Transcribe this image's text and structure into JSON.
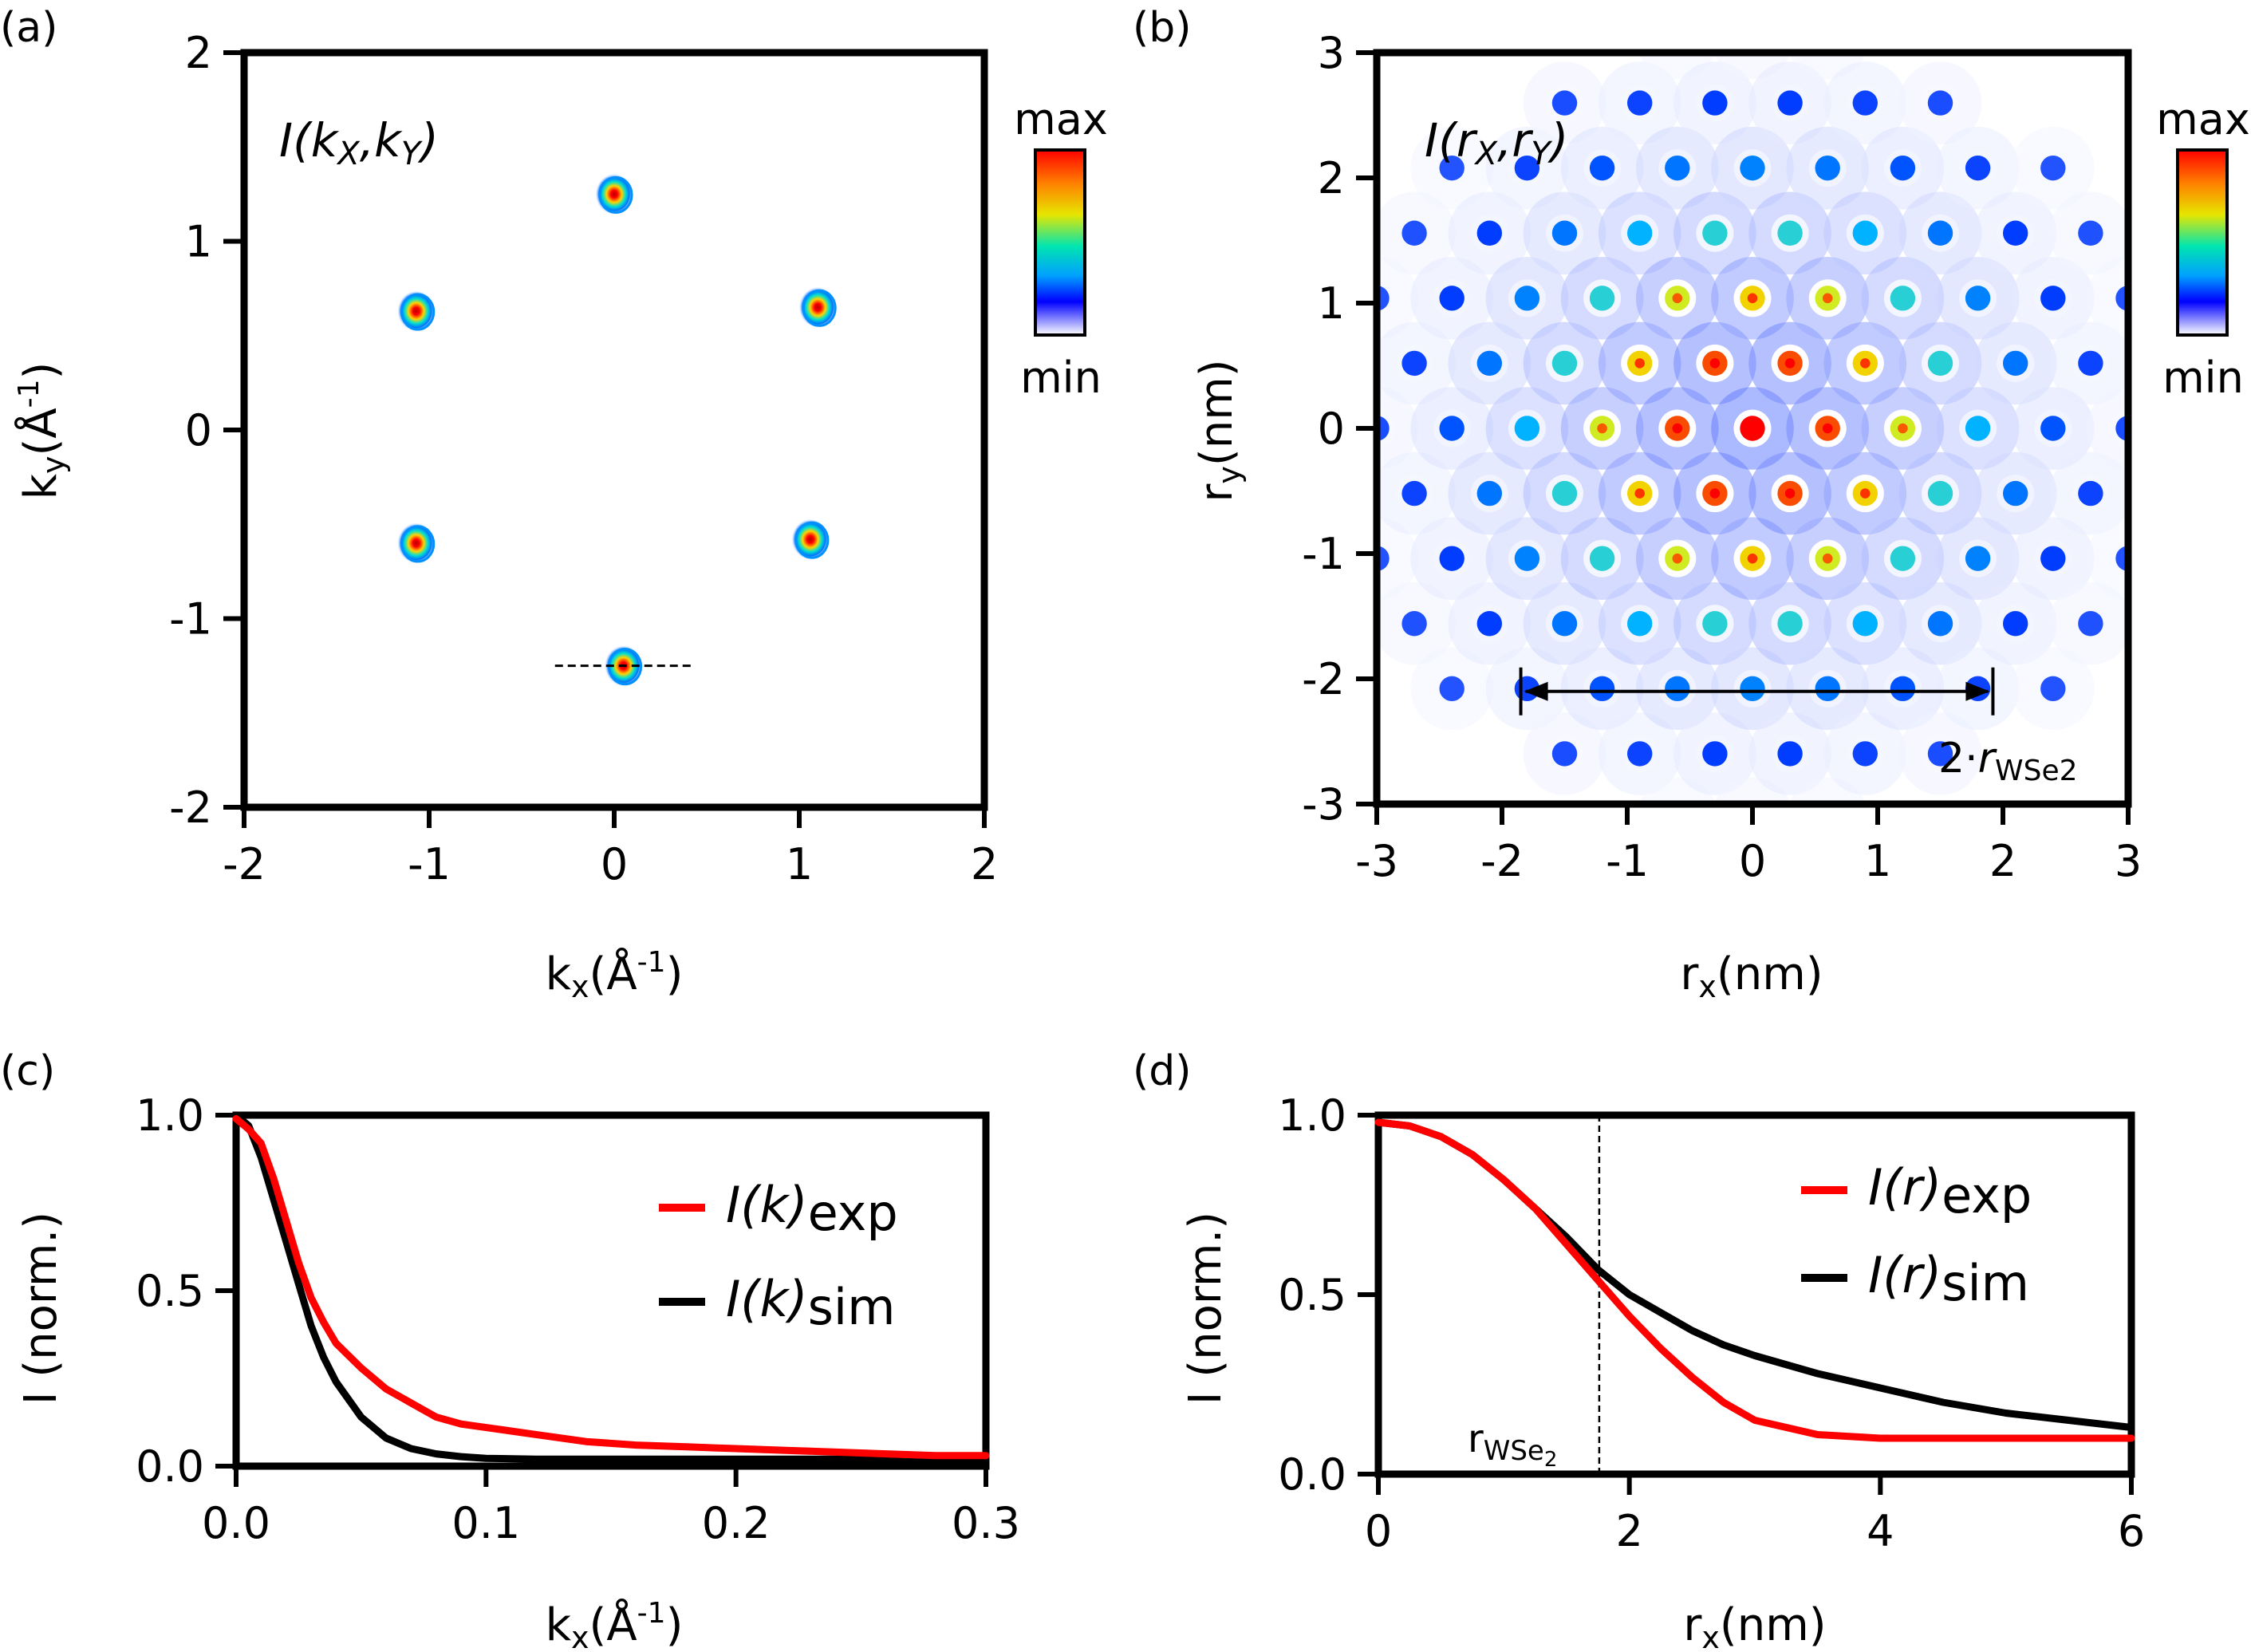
{
  "panels": {
    "a": {
      "label": "(a)",
      "inset_label": "I(kX,kY)",
      "inset_main": "I(k",
      "inset_sub1": "X",
      "inset_sep": ",k",
      "inset_sub2": "Y",
      "inset_close": ")",
      "xlabel_main": "k",
      "xlabel_sub": "x",
      "xlabel_unit_open": "(Å",
      "xlabel_sup": "-1",
      "xlabel_unit_close": ")",
      "ylabel_main": "k",
      "ylabel_sub": "y",
      "ylabel_unit_open": "(Å",
      "ylabel_sup": "-1",
      "ylabel_unit_close": ")",
      "colorbar": {
        "max_label": "max",
        "min_label": "min"
      }
    },
    "b": {
      "label": "(b)",
      "inset_main": "I(r",
      "inset_sub1": "X",
      "inset_sep": ",r",
      "inset_sub2": "Y",
      "inset_close": ")",
      "xlabel_main": "r",
      "xlabel_sub": "x",
      "xlabel_unit": "(nm)",
      "ylabel_main": "r",
      "ylabel_sub": "y",
      "ylabel_unit": "(nm)",
      "annotation_main": "2·",
      "annotation_r": "r",
      "annotation_sub": "WSe2",
      "colorbar": {
        "max_label": "max",
        "min_label": "min"
      }
    },
    "c": {
      "label": "(c)",
      "ylabel": "I (norm.)",
      "xlabel_main": "k",
      "xlabel_sub": "x",
      "xlabel_unit_open": "(Å",
      "xlabel_sup": "-1",
      "xlabel_unit_close": ")",
      "legend": [
        {
          "main": "I(k)",
          "sub": "exp",
          "color": "#ff0000"
        },
        {
          "main": "I(k)",
          "sub": "sim",
          "color": "#000000"
        }
      ]
    },
    "d": {
      "label": "(d)",
      "ylabel": "I (norm.)",
      "xlabel_main": "r",
      "xlabel_sub": "x",
      "xlabel_unit": "(nm)",
      "annotation_main": "r",
      "annotation_sub": "WSe",
      "annotation_subsub": "2",
      "legend": [
        {
          "main": "I(r)",
          "sub": "exp",
          "color": "#ff0000"
        },
        {
          "main": "I(r)",
          "sub": "sim",
          "color": "#000000"
        }
      ]
    }
  },
  "chart_data": [
    {
      "panel": "a",
      "type": "heatmap",
      "xlim": [
        -2,
        2
      ],
      "ylim": [
        -2,
        2
      ],
      "xticks": [
        "-2",
        "-1",
        "0",
        "1",
        "2"
      ],
      "yticks": [
        "-2",
        "-1",
        "0",
        "1",
        "2"
      ],
      "peaks": [
        {
          "x": 0.0,
          "y": 1.25
        },
        {
          "x": -1.07,
          "y": 0.63
        },
        {
          "x": 1.1,
          "y": 0.65
        },
        {
          "x": -1.07,
          "y": -0.6
        },
        {
          "x": 1.06,
          "y": -0.58
        },
        {
          "x": 0.05,
          "y": -1.25
        }
      ],
      "cut_line": {
        "x": [
          -0.32,
          0.42
        ],
        "y": -1.25,
        "style": "dashed"
      },
      "colormap": [
        "#ffffff",
        "#0000ff",
        "#00e5ff",
        "#ffff00",
        "#ff0000"
      ]
    },
    {
      "panel": "b",
      "type": "heatmap",
      "xlim": [
        -3,
        3
      ],
      "ylim": [
        -3,
        3
      ],
      "xticks": [
        "-3",
        "-2",
        "-1",
        "0",
        "1",
        "2",
        "3"
      ],
      "yticks": [
        "-3",
        "-2",
        "-1",
        "0",
        "1",
        "2",
        "3"
      ],
      "lattice_constant_nm": 0.6,
      "envelope_radius_nm": 1.9,
      "arrow": {
        "x": [
          -1.85,
          1.92
        ],
        "y": -2.1
      },
      "colormap": [
        "#ffffff",
        "#0000ff",
        "#00e5ff",
        "#ffff00",
        "#ff0000"
      ]
    },
    {
      "panel": "c",
      "type": "line",
      "xlim": [
        0,
        0.3
      ],
      "ylim": [
        0,
        1.0
      ],
      "xticks": [
        "0.0",
        "0.1",
        "0.2",
        "0.3"
      ],
      "yticks": [
        "0.0",
        "0.5",
        "1.0"
      ],
      "series": [
        {
          "name": "I(k)exp",
          "color": "#ff0000",
          "x": [
            0,
            0.005,
            0.01,
            0.015,
            0.02,
            0.025,
            0.03,
            0.035,
            0.04,
            0.05,
            0.06,
            0.07,
            0.08,
            0.09,
            0.1,
            0.12,
            0.14,
            0.16,
            0.18,
            0.2,
            0.22,
            0.24,
            0.26,
            0.28,
            0.3
          ],
          "y": [
            0.99,
            0.96,
            0.92,
            0.82,
            0.7,
            0.58,
            0.48,
            0.41,
            0.35,
            0.28,
            0.22,
            0.18,
            0.14,
            0.12,
            0.11,
            0.09,
            0.07,
            0.06,
            0.055,
            0.05,
            0.045,
            0.04,
            0.035,
            0.03,
            0.03
          ]
        },
        {
          "name": "I(k)sim",
          "color": "#000000",
          "x": [
            0,
            0.005,
            0.01,
            0.015,
            0.02,
            0.025,
            0.03,
            0.035,
            0.04,
            0.05,
            0.06,
            0.07,
            0.08,
            0.09,
            0.1,
            0.12,
            0.14,
            0.16,
            0.18,
            0.2,
            0.22,
            0.24,
            0.26,
            0.28,
            0.3
          ],
          "y": [
            1.0,
            0.97,
            0.88,
            0.76,
            0.64,
            0.52,
            0.4,
            0.31,
            0.24,
            0.14,
            0.08,
            0.05,
            0.035,
            0.027,
            0.022,
            0.02,
            0.02,
            0.02,
            0.02,
            0.02,
            0.02,
            0.02,
            0.02,
            0.02,
            0.02
          ]
        }
      ]
    },
    {
      "panel": "d",
      "type": "line",
      "xlim": [
        0,
        6
      ],
      "ylim": [
        0,
        1.0
      ],
      "xticks": [
        "0",
        "2",
        "4",
        "6"
      ],
      "yticks": [
        "0.0",
        "0.5",
        "1.0"
      ],
      "vline_x": 1.76,
      "series": [
        {
          "name": "I(r)exp",
          "color": "#ff0000",
          "x": [
            0,
            0.25,
            0.5,
            0.75,
            1.0,
            1.25,
            1.5,
            1.75,
            2.0,
            2.25,
            2.5,
            2.75,
            3.0,
            3.5,
            4.0,
            4.5,
            5.0,
            5.5,
            6.0
          ],
          "y": [
            0.98,
            0.97,
            0.94,
            0.89,
            0.82,
            0.74,
            0.64,
            0.54,
            0.44,
            0.35,
            0.27,
            0.2,
            0.15,
            0.11,
            0.1,
            0.1,
            0.1,
            0.1,
            0.1
          ]
        },
        {
          "name": "I(r)sim",
          "color": "#000000",
          "x": [
            0,
            0.25,
            0.5,
            0.75,
            1.0,
            1.25,
            1.5,
            1.75,
            2.0,
            2.25,
            2.5,
            2.75,
            3.0,
            3.5,
            4.0,
            4.5,
            5.0,
            5.5,
            6.0
          ],
          "y": [
            0.98,
            0.97,
            0.94,
            0.89,
            0.82,
            0.74,
            0.66,
            0.57,
            0.5,
            0.45,
            0.4,
            0.36,
            0.33,
            0.28,
            0.24,
            0.2,
            0.17,
            0.15,
            0.13
          ]
        }
      ]
    }
  ]
}
